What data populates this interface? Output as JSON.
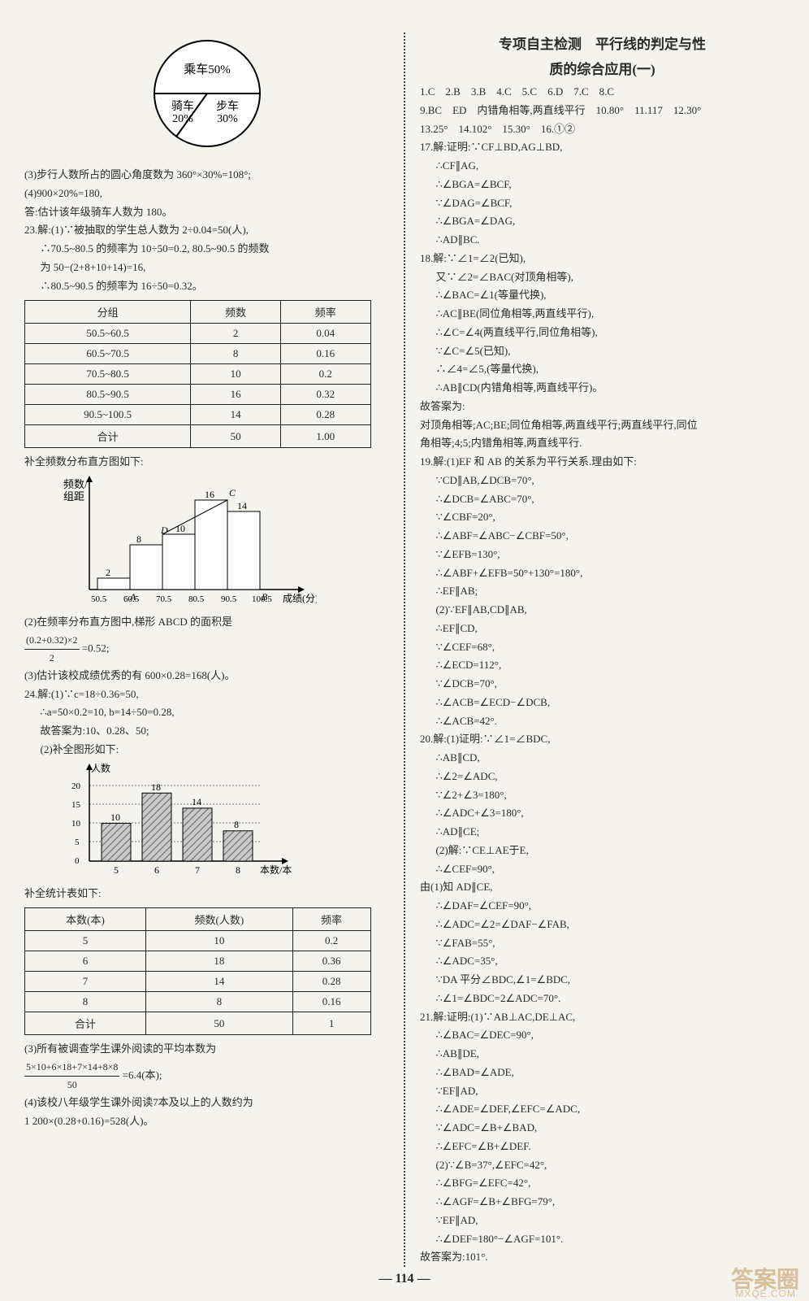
{
  "left": {
    "pie": {
      "type": "pie",
      "slices": [
        {
          "label": "乘车50%",
          "value": 50,
          "color": "#ffffff"
        },
        {
          "label": "骑车\n20%",
          "value": 20,
          "color": "#ffffff"
        },
        {
          "label": "步车\n30%",
          "value": 30,
          "color": "#ffffff"
        }
      ],
      "border_color": "#000000",
      "radius": 70
    },
    "lines1": [
      "(3)步行人数所占的圆心角度数为 360°×30%=108°;",
      "(4)900×20%=180,",
      "答:估计该年级骑车人数为 180。",
      "23.解:(1)∵被抽取的学生总人数为 2÷0.04=50(人),",
      "∴70.5~80.5 的频率为 10÷50=0.2, 80.5~90.5 的频数",
      "为 50−(2+8+10+14)=16,",
      "∴80.5~90.5 的频率为 16÷50=0.32。"
    ],
    "table1": {
      "columns": [
        "分组",
        "频数",
        "频率"
      ],
      "rows": [
        [
          "50.5~60.5",
          "2",
          "0.04"
        ],
        [
          "60.5~70.5",
          "8",
          "0.16"
        ],
        [
          "70.5~80.5",
          "10",
          "0.2"
        ],
        [
          "80.5~90.5",
          "16",
          "0.32"
        ],
        [
          "90.5~100.5",
          "14",
          "0.28"
        ],
        [
          "合计",
          "50",
          "1.00"
        ]
      ]
    },
    "hist_caption": "补全频数分布直方图如下:",
    "histogram": {
      "type": "histogram",
      "ylabel": "频数/\n组距",
      "xlabel": "成绩(分)",
      "xticks": [
        "50.5",
        "60.5",
        "70.5",
        "80.5",
        "90.5",
        "100.5"
      ],
      "bars": [
        2,
        8,
        10,
        16,
        14
      ],
      "bar_color": "#ffffff",
      "border_color": "#000000",
      "annotations": {
        "A": "A",
        "B": "B",
        "C": "C",
        "D": "D"
      },
      "label_values": [
        "2",
        "8",
        "10",
        "16",
        "14"
      ]
    },
    "lines2": [
      "(2)在频率分布直方图中,梯形 ABCD 的面积是"
    ],
    "frac1": {
      "num": "(0.2+0.32)×2",
      "den": "2",
      "after": "=0.52;"
    },
    "lines3": [
      "(3)估计该校成绩优秀的有 600×0.28=168(人)。",
      "24.解:(1)∵c=18÷0.36=50,",
      "∴a=50×0.2=10, b=14÷50=0.28,",
      "故答案为:10、0.28、50;",
      "(2)补全图形如下:"
    ],
    "barchart": {
      "type": "bar",
      "ylabel": "人数",
      "xlabel": "本数/本",
      "yticks": [
        0,
        5,
        10,
        15,
        20
      ],
      "xticks": [
        "5",
        "6",
        "7",
        "8"
      ],
      "values": [
        10,
        18,
        14,
        8
      ],
      "value_labels": [
        "10",
        "18",
        "14",
        "8"
      ],
      "bar_color": "#bbbbbb",
      "hatch": true,
      "border_color": "#000000"
    },
    "stats_caption": "补全统计表如下:",
    "table2": {
      "columns": [
        "本数(本)",
        "频数(人数)",
        "频率"
      ],
      "rows": [
        [
          "5",
          "10",
          "0.2"
        ],
        [
          "6",
          "18",
          "0.36"
        ],
        [
          "7",
          "14",
          "0.28"
        ],
        [
          "8",
          "8",
          "0.16"
        ],
        [
          "合计",
          "50",
          "1"
        ]
      ]
    },
    "lines4": [
      "(3)所有被调查学生课外阅读的平均本数为"
    ],
    "frac2": {
      "num": "5×10+6×18+7×14+8×8",
      "den": "50",
      "after": "=6.4(本);"
    },
    "lines5": [
      "(4)该校八年级学生课外阅读7本及以上的人数约为",
      "1 200×(0.28+0.16)=528(人)。"
    ]
  },
  "right": {
    "title1": "专项自主检测　平行线的判定与性",
    "title2": "质的综合应用(一)",
    "answers_line": "1.C　2.B　3.B　4.C　5.C　6.D　7.C　8.C",
    "answers_line2": "9.BC　ED　内错角相等,两直线平行　10.80°　11.117　12.30°",
    "answers_line3": "13.25°　14.102°　15.30°　16.①②",
    "proofs": [
      "17.解:证明:∵CF⊥BD,AG⊥BD,",
      "∴CF∥AG,",
      "∴∠BGA=∠BCF,",
      "∵∠DAG=∠BCF,",
      "∴∠BGA=∠DAG,",
      "∴AD∥BC.",
      "18.解:∵∠1=∠2(已知),",
      "又∵∠2=∠BAC(对顶角相等),",
      "∴∠BAC=∠1(等量代换),",
      "∴AC∥BE(同位角相等,两直线平行),",
      "∴∠C=∠4(两直线平行,同位角相等),",
      "∵∠C=∠5(已知),",
      "∴∠4=∠5,(等量代换),",
      "∴AB∥CD(内错角相等,两直线平行)。",
      "故答案为:",
      "对顶角相等;AC;BE;同位角相等,两直线平行;两直线平行,同位",
      "角相等;4;5;内错角相等,两直线平行.",
      "19.解:(1)EF 和 AB 的关系为平行关系.理由如下:",
      "∵CD∥AB,∠DCB=70°,",
      "∴∠DCB=∠ABC=70°,",
      "∵∠CBF=20°,",
      "∴∠ABF=∠ABC−∠CBF=50°,",
      "∵∠EFB=130°,",
      "∴∠ABF+∠EFB=50°+130°=180°,",
      "∴EF∥AB;",
      "(2)∵EF∥AB,CD∥AB,",
      "∴EF∥CD,",
      "∵∠CEF=68°,",
      "∴∠ECD=112°,",
      "∵∠DCB=70°,",
      "∴∠ACB=∠ECD−∠DCB,",
      "∴∠ACB=42°.",
      "20.解:(1)证明:∵∠1=∠BDC,",
      "∴AB∥CD,",
      "∴∠2=∠ADC,",
      "∵∠2+∠3=180°,",
      "∴∠ADC+∠3=180°,",
      "∴AD∥CE;",
      "(2)解:∵CE⊥AE于E,",
      "∴∠CEF=90°,",
      "由(1)知 AD∥CE,",
      "∴∠DAF=∠CEF=90°,",
      "∴∠ADC=∠2=∠DAF−∠FAB,",
      "∵∠FAB=55°,",
      "∴∠ADC=35°,",
      "∵DA 平分∠BDC,∠1=∠BDC,",
      "∴∠1=∠BDC=2∠ADC=70°.",
      "21.解:证明:(1)∵AB⊥AC,DE⊥AC,",
      "∴∠BAC=∠DEC=90°,",
      "∴AB∥DE,",
      "∴∠BAD=∠ADE,",
      "∵EF∥AD,",
      "∴∠ADE=∠DEF,∠EFC=∠ADC,",
      "∵∠ADC=∠B+∠BAD,",
      "∴∠EFC=∠B+∠DEF.",
      "(2)∵∠B=37°,∠EFC=42°,",
      "∴∠BFG=∠EFC=42°,",
      "∴∠AGF=∠B+∠BFG=79°,",
      "∵EF∥AD,",
      "∴∠DEF=180°−∠AGF=101°.",
      "故答案为:101°."
    ]
  },
  "page_number": "114",
  "watermark": "答案圈",
  "watermark_sub": "MXQE.COM"
}
